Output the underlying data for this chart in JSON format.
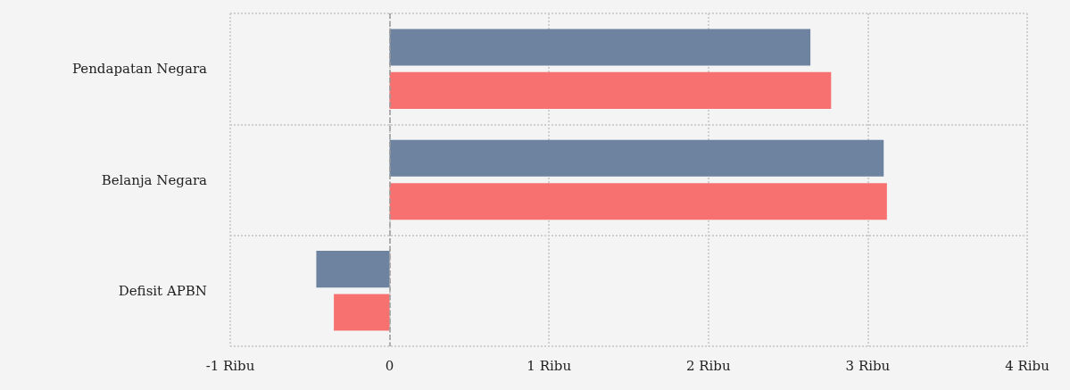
{
  "chart_data": {
    "type": "bar",
    "orientation": "horizontal",
    "categories": [
      "Pendapatan Negara",
      "Belanja Negara",
      "Defisit APBN"
    ],
    "series": [
      {
        "color": "#6d83a0",
        "values": [
          2.64,
          3.1,
          -0.46
        ]
      },
      {
        "color": "#f87171",
        "values": [
          2.77,
          3.12,
          -0.35
        ]
      }
    ],
    "xlim": [
      -1,
      4
    ],
    "xticks": [
      {
        "value": -1,
        "label": "-1 Ribu"
      },
      {
        "value": 0,
        "label": "0"
      },
      {
        "value": 1,
        "label": "1 Ribu"
      },
      {
        "value": 2,
        "label": "2 Ribu"
      },
      {
        "value": 3,
        "label": "3 Ribu"
      },
      {
        "value": 4,
        "label": "4 Ribu"
      }
    ],
    "ref_lines": [
      {
        "axis": "x",
        "value": 0,
        "color": "#9a9a9a",
        "line_style": "dashed"
      }
    ],
    "grid": true
  }
}
